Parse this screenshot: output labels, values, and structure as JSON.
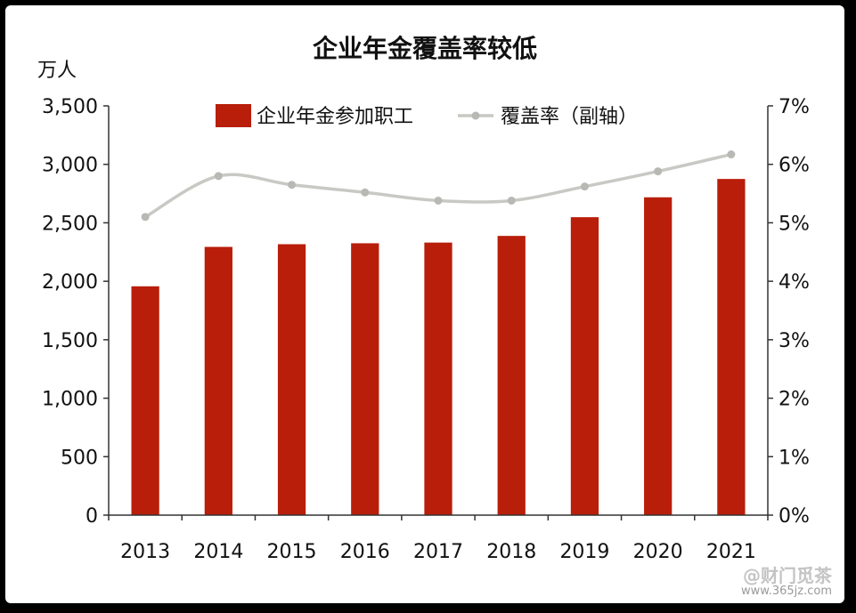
{
  "chart_data": {
    "type": "bar",
    "title": "企业年金覆盖率较低",
    "ylabel": "万人",
    "categories": [
      "2013",
      "2014",
      "2015",
      "2016",
      "2017",
      "2018",
      "2019",
      "2020",
      "2021"
    ],
    "series": [
      {
        "name": "企业年金参加职工",
        "type": "bar",
        "axis": "left",
        "color": "#b81e0a",
        "values": [
          1957,
          2294,
          2317,
          2325,
          2331,
          2388,
          2548,
          2718,
          2875
        ]
      },
      {
        "name": "覆盖率（副轴）",
        "type": "line",
        "axis": "right",
        "color": "#c8c8c4",
        "values": [
          5.1,
          5.8,
          5.65,
          5.52,
          5.38,
          5.38,
          5.62,
          5.88,
          6.17
        ]
      }
    ],
    "ylim": [
      0,
      3500
    ],
    "yticks": [
      "0",
      "500",
      "1,000",
      "1,500",
      "2,000",
      "2,500",
      "3,000",
      "3,500"
    ],
    "y2lim": [
      0,
      7
    ],
    "y2ticks": [
      "0%",
      "1%",
      "2%",
      "3%",
      "4%",
      "5%",
      "6%",
      "7%"
    ],
    "grid": false,
    "legend": "top"
  },
  "watermark": {
    "brand": "@财门觅茶",
    "url": "www.365jz.com"
  }
}
